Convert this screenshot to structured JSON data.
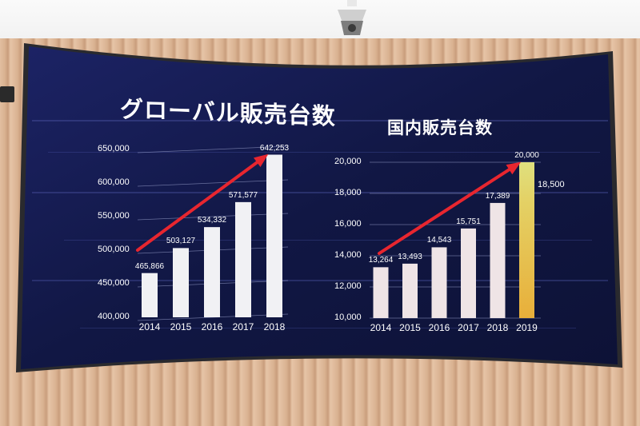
{
  "colors": {
    "screen_bg": "#131a4a",
    "bar_white": "#f1f1f4",
    "bar_light_pink": "#efe4e6",
    "bar_highlight_top": "#d9d97a",
    "bar_highlight_bottom": "#e6b23a",
    "arrow_red": "#e8262f",
    "grid": "#8c93bf"
  },
  "chart_data": [
    {
      "type": "bar",
      "title": "グローバル販売台数",
      "categories": [
        "2014",
        "2015",
        "2016",
        "2017",
        "2018"
      ],
      "values": [
        465866,
        503127,
        534332,
        571577,
        642253
      ],
      "value_labels": [
        "465,866",
        "503,127",
        "534,332",
        "571,577",
        "642,253"
      ],
      "yticks": [
        "400,000",
        "450,000",
        "500,000",
        "550,000",
        "600,000",
        "650,000"
      ],
      "ylim": [
        400000,
        650000
      ],
      "grid": true,
      "trend_arrow": true
    },
    {
      "type": "bar",
      "title": "国内販売台数",
      "categories": [
        "2014",
        "2015",
        "2016",
        "2017",
        "2018",
        "2019"
      ],
      "values": [
        13264,
        13493,
        14543,
        15751,
        17389,
        20000
      ],
      "value_labels": [
        "13,264",
        "13,493",
        "14,543",
        "15,751",
        "17,389",
        "20,000"
      ],
      "extra_label": "18,500",
      "extra_value": 18500,
      "yticks": [
        "10,000",
        "12,000",
        "14,000",
        "16,000",
        "18,000",
        "20,000"
      ],
      "ylim": [
        10000,
        20000
      ],
      "grid": true,
      "trend_arrow": true
    }
  ]
}
